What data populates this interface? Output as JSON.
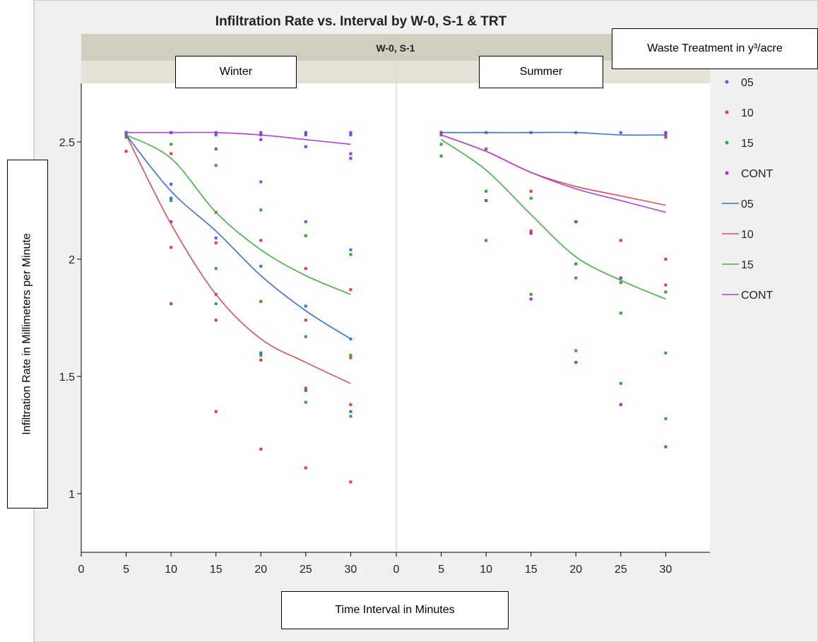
{
  "chart_data": {
    "type": "line",
    "title": "Infiltration Rate vs. Interval by W-0, S-1 & TRT",
    "group_header": "W-0, S-1",
    "panels": [
      {
        "name": "Winter",
        "fits": {
          "05": [
            [
              5,
              2.53
            ],
            [
              10,
              2.29
            ],
            [
              15,
              2.12
            ],
            [
              20,
              1.93
            ],
            [
              25,
              1.78
            ],
            [
              30,
              1.66
            ]
          ],
          "10": [
            [
              5,
              2.53
            ],
            [
              10,
              2.15
            ],
            [
              15,
              1.85
            ],
            [
              20,
              1.66
            ],
            [
              25,
              1.56
            ],
            [
              30,
              1.47
            ]
          ],
          "15": [
            [
              5,
              2.53
            ],
            [
              10,
              2.43
            ],
            [
              15,
              2.2
            ],
            [
              20,
              2.04
            ],
            [
              25,
              1.93
            ],
            [
              30,
              1.85
            ]
          ],
          "CONT": [
            [
              5,
              2.54
            ],
            [
              10,
              2.54
            ],
            [
              15,
              2.54
            ],
            [
              20,
              2.53
            ],
            [
              25,
              2.51
            ],
            [
              30,
              2.49
            ]
          ]
        },
        "points": {
          "05": [
            [
              5,
              2.54
            ],
            [
              5,
              2.53
            ],
            [
              10,
              2.32
            ],
            [
              10,
              2.26
            ],
            [
              10,
              2.54
            ],
            [
              15,
              2.47
            ],
            [
              15,
              2.09
            ],
            [
              15,
              2.53
            ],
            [
              20,
              2.33
            ],
            [
              20,
              1.97
            ],
            [
              20,
              1.6
            ],
            [
              20,
              2.53
            ],
            [
              25,
              2.16
            ],
            [
              25,
              1.8
            ],
            [
              25,
              1.44
            ],
            [
              25,
              2.53
            ],
            [
              30,
              2.04
            ],
            [
              30,
              1.66
            ],
            [
              30,
              1.35
            ],
            [
              30,
              2.53
            ]
          ],
          "10": [
            [
              5,
              2.46
            ],
            [
              5,
              2.53
            ],
            [
              10,
              2.45
            ],
            [
              10,
              2.05
            ],
            [
              10,
              1.81
            ],
            [
              15,
              2.2
            ],
            [
              15,
              2.07
            ],
            [
              15,
              1.74
            ],
            [
              15,
              1.35
            ],
            [
              20,
              2.08
            ],
            [
              20,
              1.82
            ],
            [
              20,
              1.57
            ],
            [
              20,
              1.19
            ],
            [
              25,
              1.96
            ],
            [
              25,
              1.74
            ],
            [
              25,
              1.45
            ],
            [
              25,
              1.11
            ],
            [
              30,
              1.87
            ],
            [
              30,
              1.58
            ],
            [
              30,
              1.38
            ],
            [
              30,
              1.05
            ]
          ],
          "15": [
            [
              5,
              2.52
            ],
            [
              10,
              2.49
            ],
            [
              10,
              2.25
            ],
            [
              15,
              2.4
            ],
            [
              15,
              1.96
            ],
            [
              15,
              1.81
            ],
            [
              20,
              2.21
            ],
            [
              20,
              1.82
            ],
            [
              20,
              1.59
            ],
            [
              25,
              2.1
            ],
            [
              25,
              1.67
            ],
            [
              25,
              1.39
            ],
            [
              30,
              2.02
            ],
            [
              30,
              1.59
            ],
            [
              30,
              1.33
            ]
          ],
          "CONT": [
            [
              5,
              2.54
            ],
            [
              10,
              2.54
            ],
            [
              10,
              2.16
            ],
            [
              15,
              2.54
            ],
            [
              15,
              1.85
            ],
            [
              20,
              2.54
            ],
            [
              20,
              2.51
            ],
            [
              25,
              2.54
            ],
            [
              25,
              2.48
            ],
            [
              30,
              2.54
            ],
            [
              30,
              2.45
            ],
            [
              30,
              2.43
            ]
          ]
        }
      },
      {
        "name": "Summer",
        "fits": {
          "05": [
            [
              5,
              2.54
            ],
            [
              10,
              2.54
            ],
            [
              15,
              2.54
            ],
            [
              20,
              2.54
            ],
            [
              25,
              2.53
            ],
            [
              30,
              2.53
            ]
          ],
          "10": [
            [
              5,
              2.53
            ],
            [
              10,
              2.46
            ],
            [
              15,
              2.37
            ],
            [
              20,
              2.31
            ],
            [
              25,
              2.27
            ],
            [
              30,
              2.23
            ]
          ],
          "15": [
            [
              5,
              2.51
            ],
            [
              10,
              2.38
            ],
            [
              15,
              2.19
            ],
            [
              20,
              2.01
            ],
            [
              25,
              1.91
            ],
            [
              30,
              1.83
            ]
          ],
          "CONT": [
            [
              5,
              2.53
            ],
            [
              10,
              2.46
            ],
            [
              15,
              2.37
            ],
            [
              20,
              2.3
            ],
            [
              25,
              2.25
            ],
            [
              30,
              2.2
            ]
          ]
        },
        "points": {
          "05": [
            [
              5,
              2.54
            ],
            [
              10,
              2.54
            ],
            [
              15,
              2.54
            ],
            [
              20,
              2.54
            ],
            [
              25,
              2.54
            ],
            [
              30,
              2.54
            ],
            [
              30,
              2.53
            ]
          ],
          "10": [
            [
              5,
              2.53
            ],
            [
              10,
              2.47
            ],
            [
              15,
              2.29
            ],
            [
              15,
              2.12
            ],
            [
              20,
              2.16
            ],
            [
              20,
              1.98
            ],
            [
              25,
              2.08
            ],
            [
              25,
              1.92
            ],
            [
              30,
              2.0
            ],
            [
              30,
              1.89
            ],
            [
              30,
              2.52
            ]
          ],
          "15": [
            [
              5,
              2.44
            ],
            [
              5,
              2.49
            ],
            [
              10,
              2.29
            ],
            [
              10,
              2.08
            ],
            [
              15,
              2.26
            ],
            [
              15,
              1.85
            ],
            [
              20,
              1.92
            ],
            [
              20,
              1.61
            ],
            [
              20,
              1.98
            ],
            [
              25,
              1.9
            ],
            [
              25,
              1.77
            ],
            [
              25,
              1.47
            ],
            [
              30,
              1.86
            ],
            [
              30,
              1.6
            ],
            [
              30,
              1.32
            ]
          ],
          "CONT": [
            [
              5,
              2.54
            ],
            [
              10,
              2.25
            ],
            [
              15,
              2.11
            ],
            [
              15,
              1.83
            ],
            [
              20,
              2.16
            ],
            [
              20,
              1.56
            ],
            [
              25,
              1.92
            ],
            [
              25,
              1.38
            ],
            [
              30,
              1.2
            ],
            [
              30,
              2.54
            ]
          ]
        }
      }
    ],
    "x_ticks": [
      0,
      5,
      10,
      15,
      20,
      25,
      30
    ],
    "xlim": [
      0,
      35
    ],
    "ylim": [
      0.75,
      2.75
    ],
    "y_ticks": [
      1,
      1.5,
      2,
      2.5
    ],
    "y_tick_labels": [
      "1",
      "1.5",
      "2",
      "2.5"
    ],
    "series": [
      {
        "name": "05",
        "color": "#3b6fd8",
        "marker_color": "#3b6fd8"
      },
      {
        "name": "10",
        "color": "#e05050",
        "marker_color": "#e83a3a"
      },
      {
        "name": "15",
        "color": "#3fb43f",
        "marker_color": "#2ea82e"
      },
      {
        "name": "CONT",
        "color": "#b23fd8",
        "marker_color": "#a030d0"
      }
    ],
    "legend_title": "Waste Treatment in y³/acre",
    "xlabel": "Time Interval in Minutes",
    "ylabel": "Infiltration Rate in Millimeters per Minute",
    "grid": false,
    "legend": "right"
  }
}
